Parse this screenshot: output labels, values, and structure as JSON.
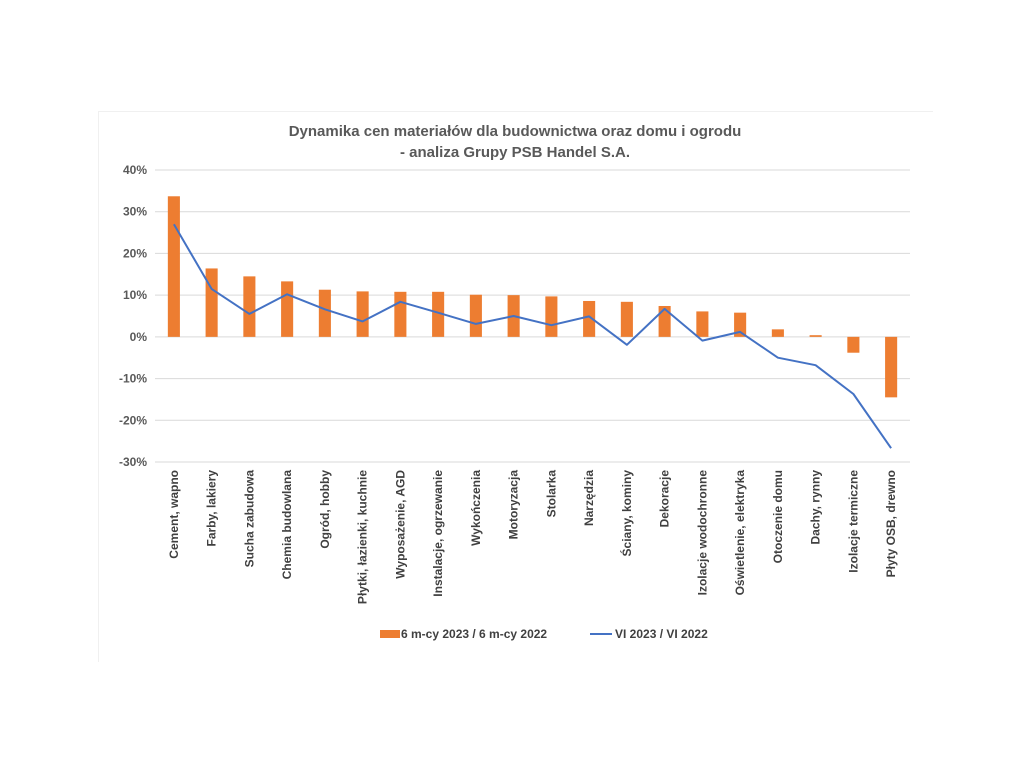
{
  "chart_data": {
    "type": "bar",
    "title": "Dynamika cen materiałów dla budownictwa oraz domu i ogrodu",
    "subtitle": "- analiza Grupy PSB Handel S.A.",
    "xlabel": "",
    "ylabel": "",
    "ylim": [
      -30,
      40
    ],
    "yticks": [
      40,
      30,
      20,
      10,
      0,
      -10,
      -20,
      -30
    ],
    "ytick_labels": [
      "40%",
      "30%",
      "20%",
      "10%",
      "0%",
      "-10%",
      "-20%",
      "-30%"
    ],
    "grid": true,
    "legend_position": "bottom",
    "categories": [
      "Cement, wapno",
      "Farby, lakiery",
      "Sucha zabudowa",
      "Chemia budowlana",
      "Ogród, hobby",
      "Płytki, łazienki, kuchnie",
      "Wyposażenie, AGD",
      "Instalacje, ogrzewanie",
      "Wykończenia",
      "Motoryzacja",
      "Stolarka",
      "Narzędzia",
      "Ściany, kominy",
      "Dekoracje",
      "Izolacje wodochronne",
      "Oświetlenie, elektryka",
      "Otoczenie domu",
      "Dachy, rynny",
      "Izolacje termiczne",
      "Płyty OSB, drewno"
    ],
    "series": [
      {
        "name": "6 m-cy 2023 / 6 m-cy 2022",
        "type": "bar",
        "color": "#ED7D31",
        "values": [
          33.7,
          16.4,
          14.5,
          13.3,
          11.3,
          10.9,
          10.8,
          10.8,
          10.1,
          10.0,
          9.7,
          8.6,
          8.4,
          7.4,
          6.1,
          5.8,
          1.8,
          0.4,
          -3.8,
          -14.5
        ]
      },
      {
        "name": "VI 2023 / VI 2022",
        "type": "line",
        "color": "#4472C4",
        "values": [
          27.0,
          11.5,
          5.5,
          10.2,
          6.6,
          3.7,
          8.4,
          5.8,
          3.1,
          5.0,
          2.8,
          4.9,
          -1.9,
          6.7,
          -0.9,
          1.2,
          -5.0,
          -6.8,
          -13.7,
          -26.7
        ]
      }
    ]
  }
}
